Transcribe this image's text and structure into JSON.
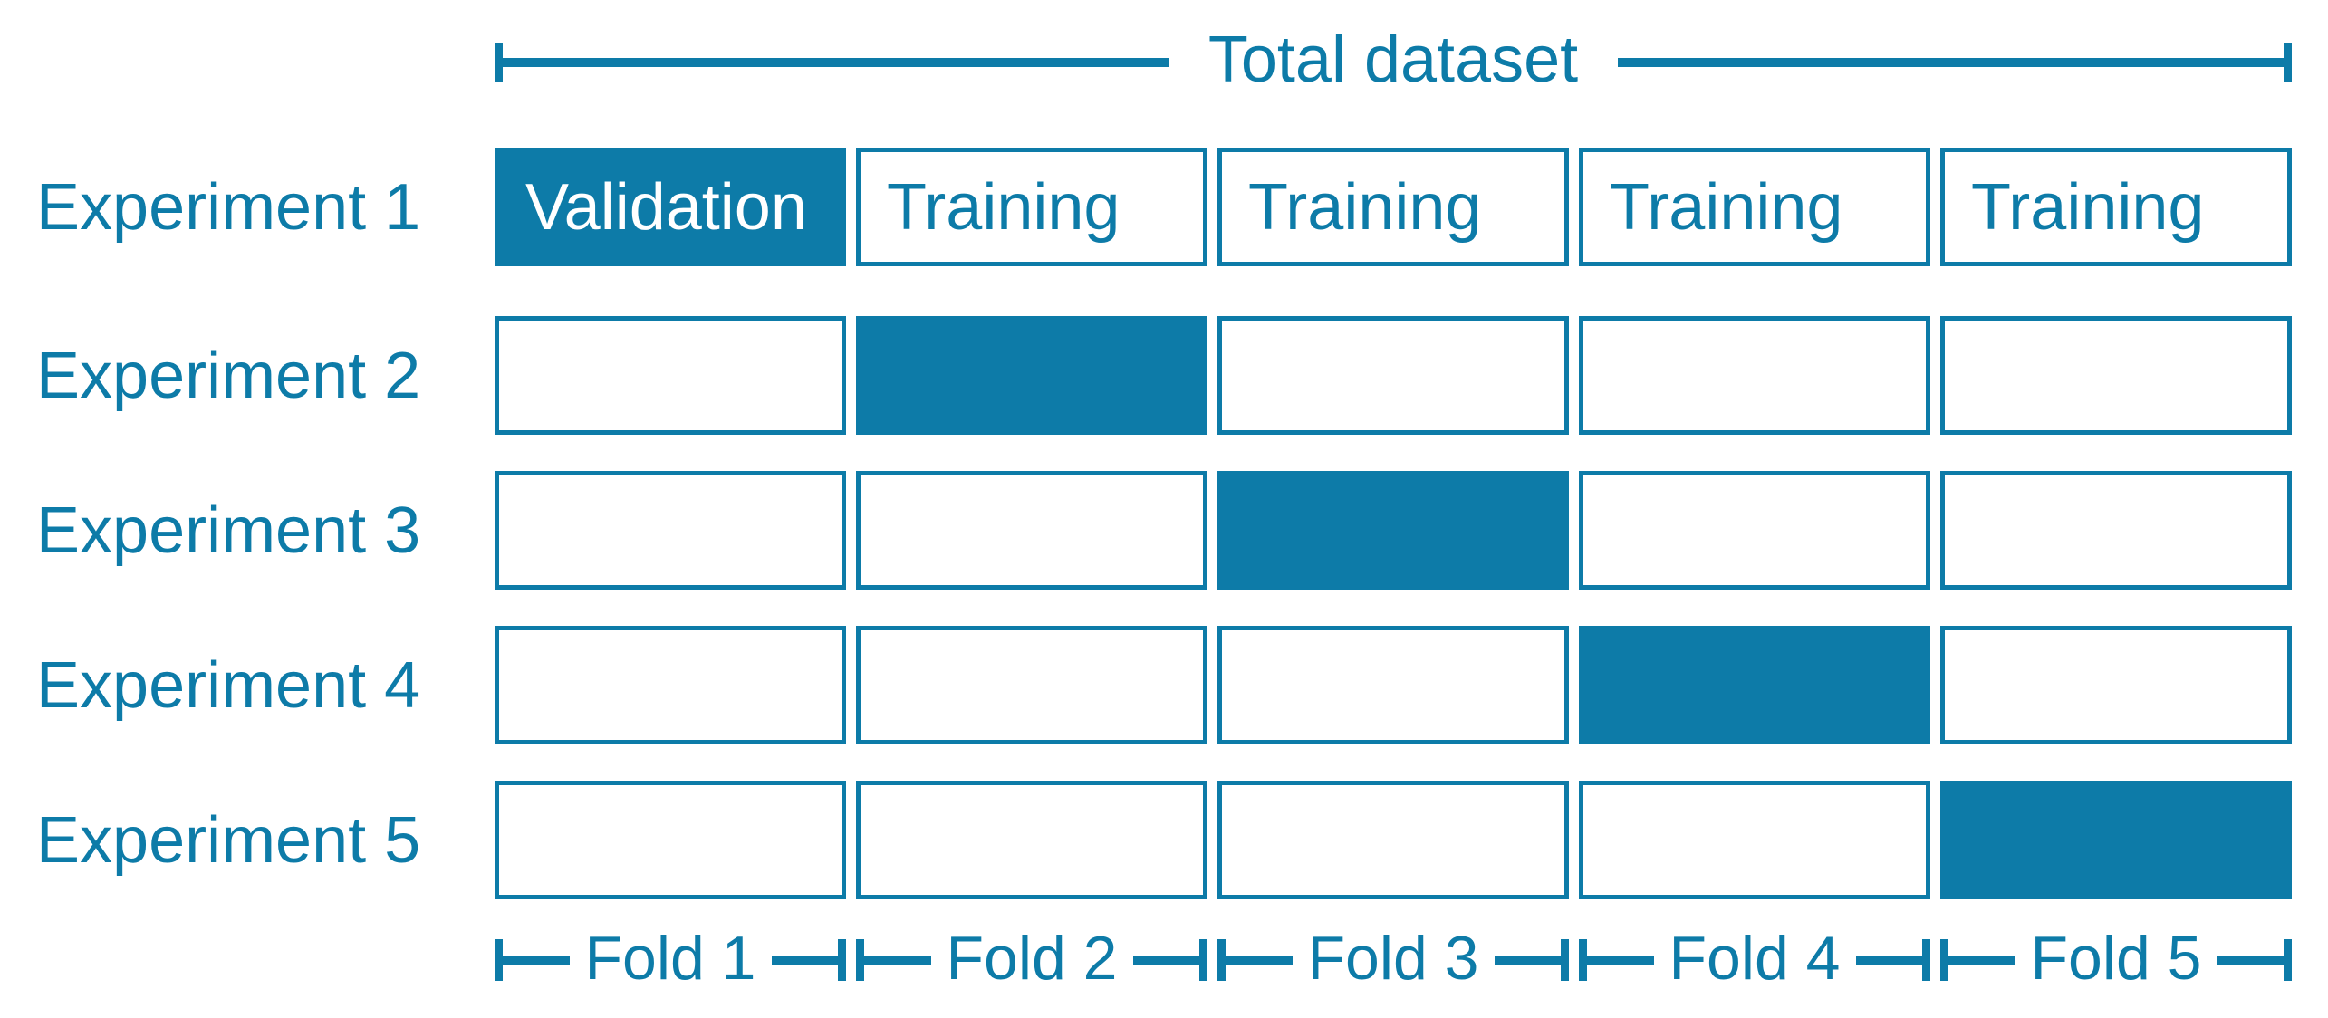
{
  "diagram": {
    "total_label": "Total dataset",
    "accent_color": "#0d7ba8",
    "experiments": [
      {
        "label": "Experiment 1",
        "validation_fold": 1,
        "cells": [
          "Validation",
          "Training",
          "Training",
          "Training",
          "Training"
        ]
      },
      {
        "label": "Experiment 2",
        "validation_fold": 2,
        "cells": [
          "",
          "",
          "",
          "",
          ""
        ]
      },
      {
        "label": "Experiment 3",
        "validation_fold": 3,
        "cells": [
          "",
          "",
          "",
          "",
          ""
        ]
      },
      {
        "label": "Experiment 4",
        "validation_fold": 4,
        "cells": [
          "",
          "",
          "",
          "",
          ""
        ]
      },
      {
        "label": "Experiment 5",
        "validation_fold": 5,
        "cells": [
          "",
          "",
          "",
          "",
          ""
        ]
      }
    ],
    "folds": [
      {
        "label": "Fold 1"
      },
      {
        "label": "Fold 2"
      },
      {
        "label": "Fold 3"
      },
      {
        "label": "Fold 4"
      },
      {
        "label": "Fold 5"
      }
    ]
  }
}
